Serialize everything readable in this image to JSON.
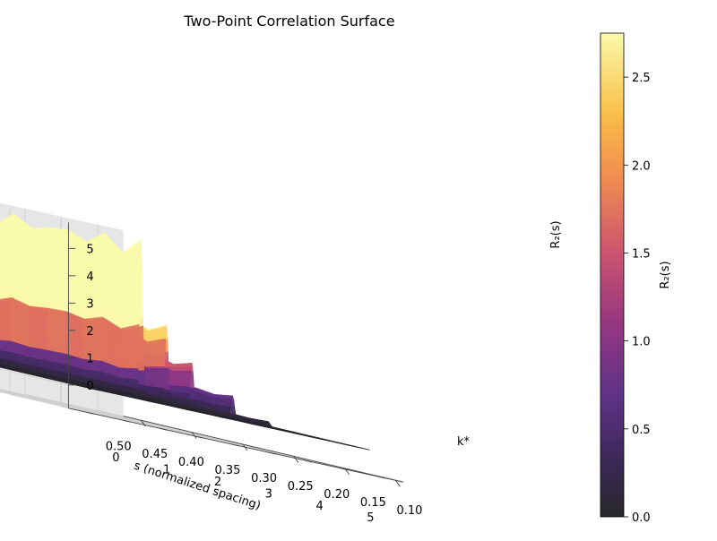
{
  "chart_data": {
    "type": "surface3d",
    "title": "Two-Point Correlation Surface",
    "xlabel": "s (normalized spacing)",
    "ylabel": "k*",
    "zlabel": "R₂(s)",
    "xlim": [
      0,
      5
    ],
    "ylim": [
      0.1,
      0.5
    ],
    "zlim": [
      0,
      5.5
    ],
    "x_ticks": [
      "0",
      "1",
      "2",
      "3",
      "4",
      "5"
    ],
    "y_ticks": [
      "0.10",
      "0.15",
      "0.20",
      "0.25",
      "0.30",
      "0.35",
      "0.40",
      "0.45",
      "0.50"
    ],
    "z_ticks": [
      "0",
      "1",
      "2",
      "3",
      "4",
      "5"
    ],
    "colormap": "inferno",
    "colorbar": {
      "label": "R₂(s)",
      "range": [
        0.0,
        2.75
      ],
      "ticks": [
        "0.0",
        "0.5",
        "1.0",
        "1.5",
        "2.0",
        "2.5"
      ]
    },
    "peaks": [
      {
        "s": 0.5,
        "height": 5.4
      },
      {
        "s": 1.0,
        "height": 2.65
      },
      {
        "s": 1.5,
        "height": 1.55
      },
      {
        "s": 2.3,
        "height": 0.75
      },
      {
        "s": 3.0,
        "height": 0.15
      }
    ],
    "background_level": 0.05,
    "grid": true
  }
}
